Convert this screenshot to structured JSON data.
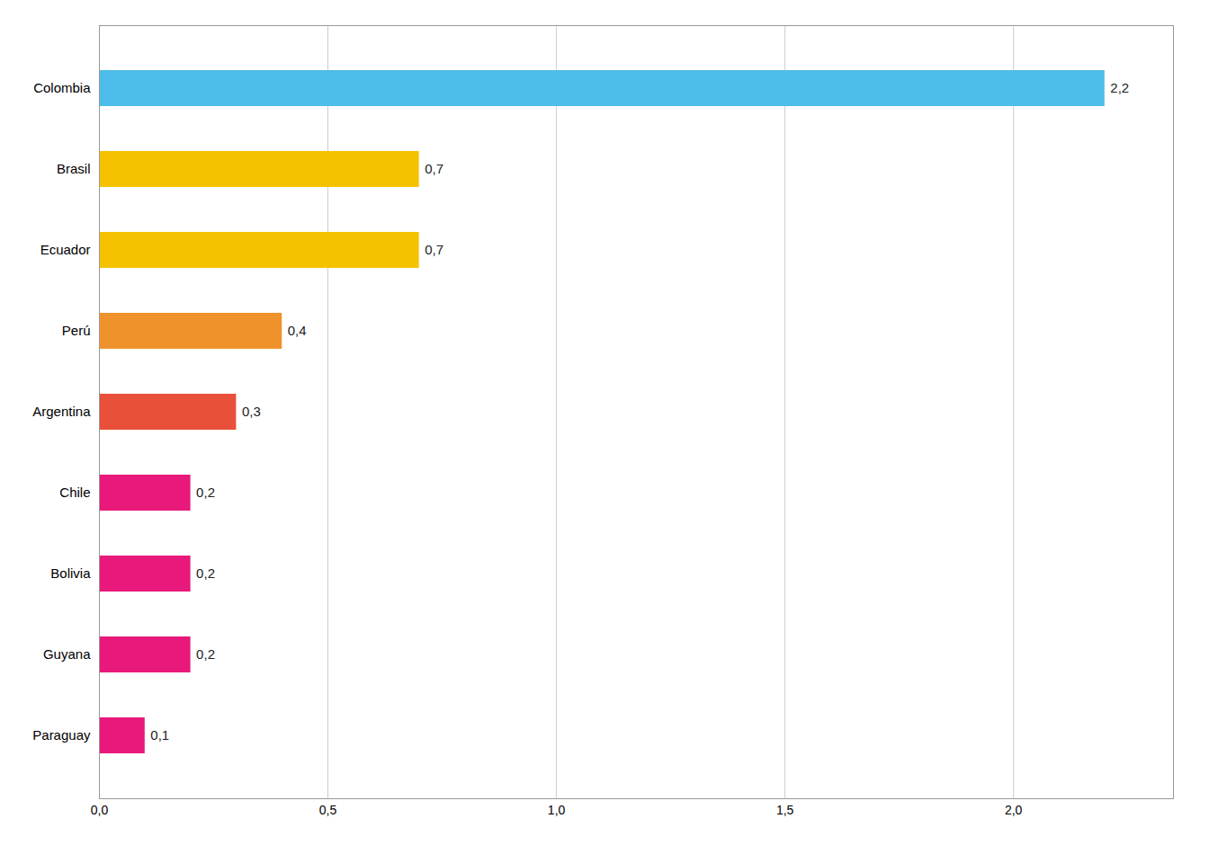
{
  "chart_data": {
    "type": "bar",
    "orientation": "horizontal",
    "categories": [
      "Paraguay",
      "Guyana",
      "Bolivia",
      "Chile",
      "Argentina",
      "Perú",
      "Ecuador",
      "Brasil",
      "Colombia"
    ],
    "values": [
      0.1,
      0.2,
      0.2,
      0.2,
      0.3,
      0.4,
      0.7,
      0.7,
      2.2
    ],
    "value_labels": [
      "0,1",
      "0,2",
      "0,2",
      "0,2",
      "0,3",
      "0,4",
      "0,7",
      "0,7",
      "2,2"
    ],
    "data_labels": true,
    "colors": [
      "#e8197a",
      "#e8197a",
      "#e8197a",
      "#e8197a",
      "#e8503a",
      "#f0922b",
      "#f5c200",
      "#f5c200",
      "#4bbde8"
    ],
    "xlim": [
      0,
      2.35
    ],
    "xticks": [
      {
        "value": 0.0,
        "label": "0,0"
      },
      {
        "value": 0.5,
        "label": "0,5"
      },
      {
        "value": 1.0,
        "label": "1,0"
      },
      {
        "value": 1.5,
        "label": "1,5"
      },
      {
        "value": 2.0,
        "label": "2,0"
      }
    ],
    "grid": true
  }
}
